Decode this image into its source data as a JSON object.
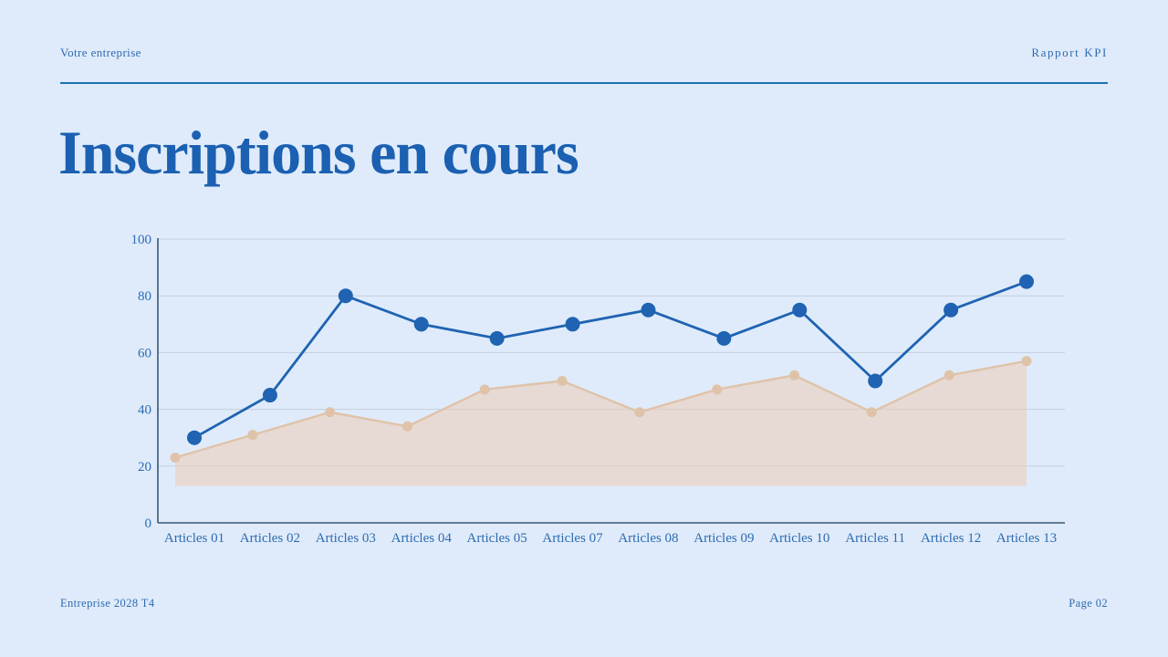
{
  "page": {
    "background": "#dfebfa",
    "accent": "#1b60b1"
  },
  "header": {
    "company": "Votre entreprise",
    "report": "Rapport KPI"
  },
  "title": "Inscriptions en cours",
  "footer": {
    "left": "Entreprise 2028 T4",
    "right": "Page 02"
  },
  "chart_data": {
    "type": "line",
    "title": "",
    "xlabel": "",
    "ylabel": "",
    "categories": [
      "Articles 01",
      "Articles 02",
      "Articles 03",
      "Articles 04",
      "Articles 05",
      "Articles 07",
      "Articles 08",
      "Articles 09",
      "Articles 10",
      "Articles 11",
      "Articles 12",
      "Articles 13"
    ],
    "series": [
      {
        "name": "registrations-area-series",
        "type": "area",
        "values": [
          23,
          31,
          39,
          34,
          47,
          50,
          39,
          47,
          52,
          39,
          52,
          57
        ],
        "baseline": 13,
        "color": "#dfc3a9",
        "fill": "#eccbb5",
        "fill_opacity": 0.55
      },
      {
        "name": "registrations-line-series",
        "type": "line",
        "values": [
          30,
          45,
          80,
          70,
          65,
          70,
          75,
          65,
          75,
          50,
          75,
          85
        ],
        "color": "#1f63b2"
      }
    ],
    "ylim": [
      0,
      100
    ],
    "yticks": [
      0,
      20,
      40,
      60,
      80,
      100
    ],
    "grid": true,
    "legend": "none"
  }
}
